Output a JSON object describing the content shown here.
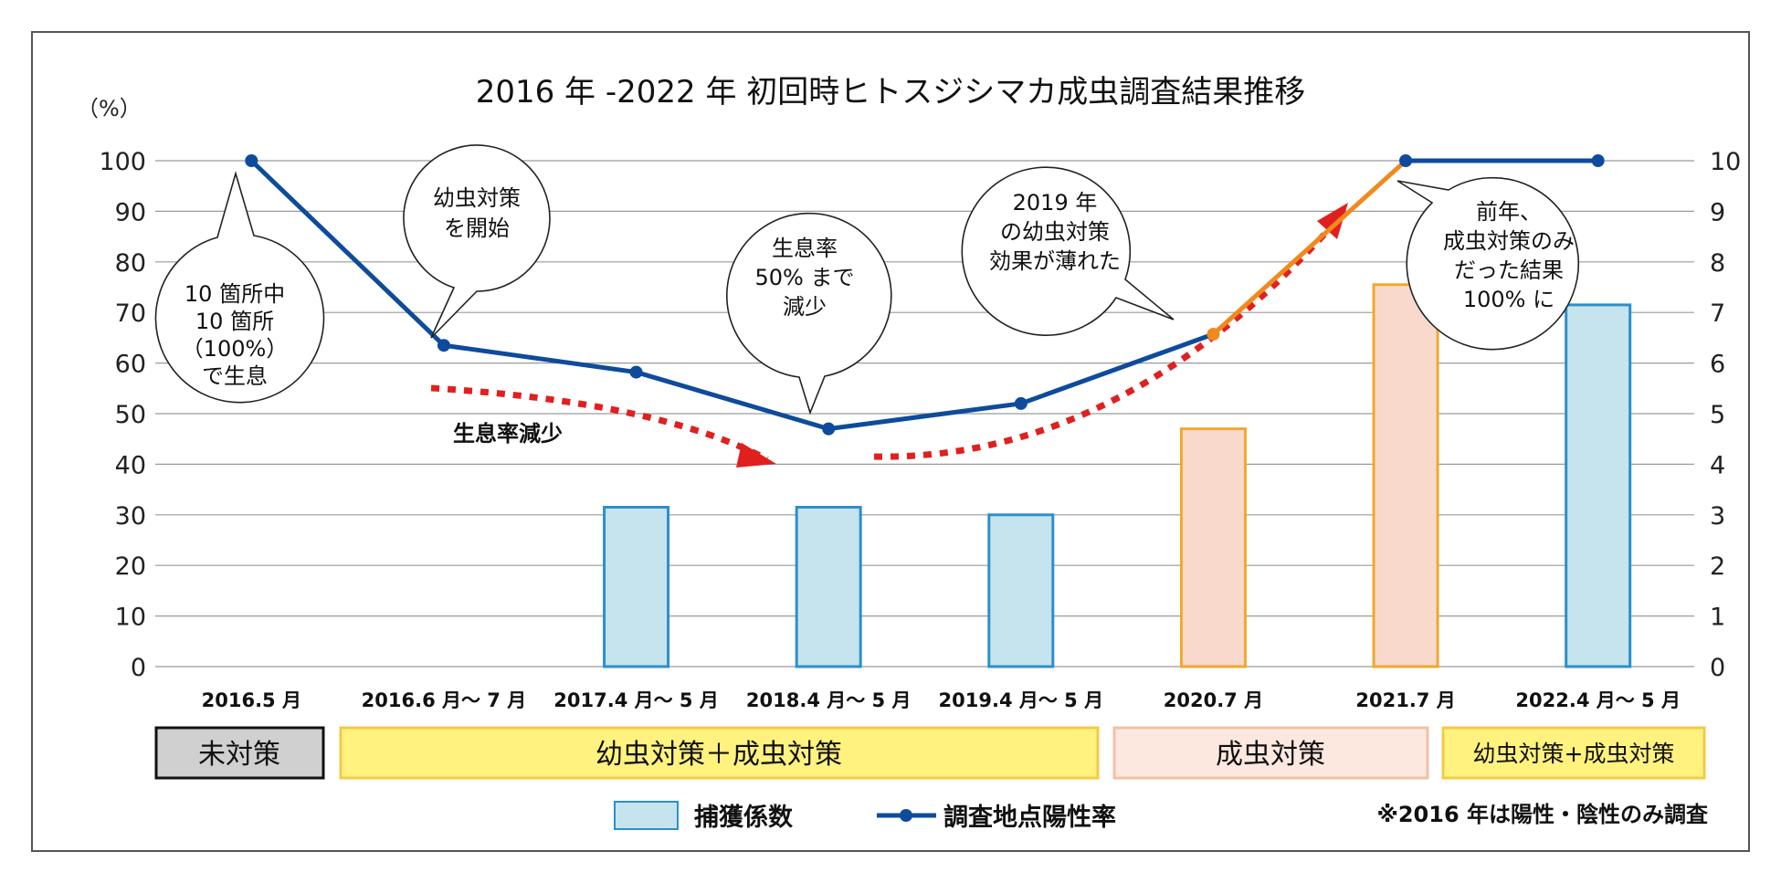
{
  "chart_data": {
    "type": "bar+line",
    "title": "2016 年 -2022 年  初回時ヒトスジシマカ成虫調査結果推移",
    "left_axis_unit": "（%）",
    "left_axis": {
      "min": 0,
      "max": 100,
      "step": 10
    },
    "right_axis": {
      "min": 0,
      "max": 10,
      "step": 1
    },
    "categories": [
      "2016.5 月",
      "2016.6 月～ 7 月",
      "2017.4 月～ 5 月",
      "2018.4 月～ 5 月",
      "2019.4 月～ 5 月",
      "2020.7 月",
      "2021.7 月",
      "2022.4 月～ 5 月"
    ],
    "bars": {
      "name": "捕獲係数",
      "axis": "right",
      "values": [
        null,
        null,
        3.15,
        3.15,
        3.0,
        4.7,
        7.55,
        7.15
      ],
      "colors": [
        "#c5e4ee",
        "#c5e4ee",
        "#c5e4ee",
        "#c5e4ee",
        "#c5e4ee",
        "#f8d9cc",
        "#f8d9cc",
        "#c5e4ee"
      ],
      "border_colors": [
        "#2c8fca",
        "#2c8fca",
        "#2c8fca",
        "#2c8fca",
        "#2c8fca",
        "#f0a830",
        "#f0a830",
        "#2c8fca"
      ]
    },
    "line": {
      "name": "調査地点陽性率",
      "axis": "left",
      "values": [
        100,
        63.5,
        58.2,
        47,
        52,
        65.7,
        100,
        100
      ],
      "color": "#0e4b9c",
      "highlight_color": "#f0891e",
      "highlight_segment": [
        5,
        6
      ]
    },
    "annotations": {
      "bubble_a": [
        "10 箇所中",
        "10 箇所",
        "（100%）",
        "で生息"
      ],
      "bubble_b": [
        "幼虫対策",
        "を開始"
      ],
      "bubble_c": [
        "生息率",
        "50% まで",
        "減少"
      ],
      "bubble_d": [
        "2019 年",
        "の幼虫対策",
        "効果が薄れた"
      ],
      "bubble_e": [
        "前年、",
        "成虫対策のみ",
        "だった結果",
        "100% に"
      ],
      "decrease_label": "生息率減少"
    },
    "phases": [
      {
        "label": "未対策",
        "fill": "#d0d0d0",
        "border": "#111111"
      },
      {
        "label": "幼虫対策＋成虫対策",
        "fill": "#fff27e",
        "border": "#f2c94c"
      },
      {
        "label": "成虫対策",
        "fill": "#fde8df",
        "border": "#f2c0a6"
      },
      {
        "label": "幼虫対策+成虫対策",
        "fill": "#fff27e",
        "border": "#f2c94c"
      }
    ],
    "legend": {
      "bar_label": "捕獲係数",
      "line_label": "調査地点陽性率"
    },
    "note": "※2016 年は陽性・陰性のみ調査"
  }
}
